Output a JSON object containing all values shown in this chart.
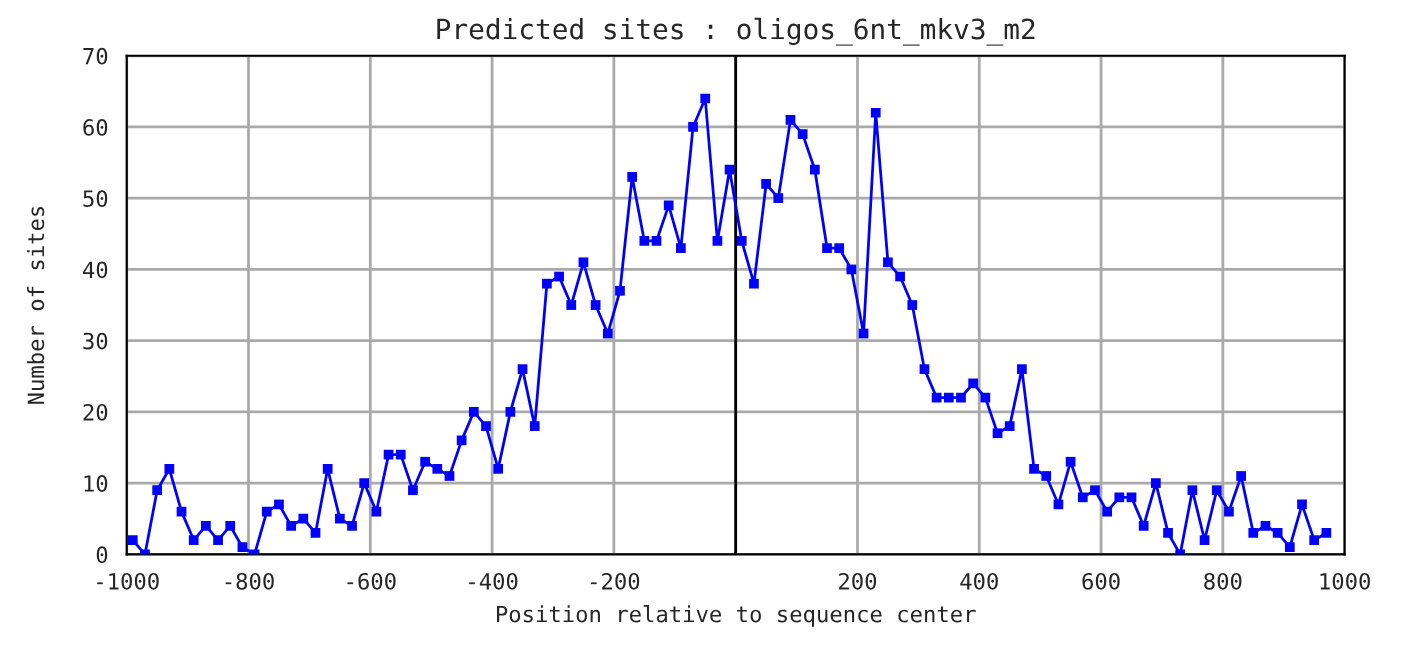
{
  "chart_data": {
    "type": "line",
    "title": "Predicted sites : oligos_6nt_mkv3_m2",
    "xlabel": "Position relative to sequence center",
    "ylabel": "Number of sites",
    "x": [
      -990,
      -970,
      -950,
      -930,
      -910,
      -890,
      -870,
      -850,
      -830,
      -810,
      -790,
      -770,
      -750,
      -730,
      -710,
      -690,
      -670,
      -650,
      -630,
      -610,
      -590,
      -570,
      -550,
      -530,
      -510,
      -490,
      -470,
      -450,
      -430,
      -410,
      -390,
      -370,
      -350,
      -330,
      -310,
      -290,
      -270,
      -250,
      -230,
      -210,
      -190,
      -170,
      -150,
      -130,
      -110,
      -90,
      -70,
      -50,
      -30,
      -10,
      10,
      30,
      50,
      70,
      90,
      110,
      130,
      150,
      170,
      190,
      210,
      230,
      250,
      270,
      290,
      310,
      330,
      350,
      370,
      390,
      410,
      430,
      450,
      470,
      490,
      510,
      530,
      550,
      570,
      590,
      610,
      630,
      650,
      670,
      690,
      710,
      730,
      750,
      770,
      790,
      810,
      830,
      850,
      870,
      890,
      910,
      930,
      950,
      970
    ],
    "series": [
      {
        "color": "#0000ff",
        "values": [
          2,
          0,
          9,
          12,
          6,
          2,
          4,
          2,
          4,
          1,
          0,
          6,
          7,
          4,
          5,
          3,
          12,
          5,
          4,
          10,
          6,
          14,
          14,
          9,
          13,
          12,
          11,
          16,
          20,
          18,
          12,
          20,
          26,
          18,
          38,
          39,
          35,
          41,
          35,
          31,
          37,
          53,
          44,
          44,
          49,
          43,
          60,
          64,
          44,
          54,
          44,
          38,
          52,
          50,
          61,
          59,
          54,
          43,
          43,
          40,
          31,
          62,
          41,
          39,
          35,
          26,
          22,
          22,
          22,
          24,
          22,
          17,
          18,
          26,
          12,
          11,
          7,
          13,
          8,
          9,
          6,
          8,
          8,
          4,
          10,
          3,
          0,
          9,
          2,
          9,
          6,
          11,
          3,
          4,
          3,
          1,
          7,
          2,
          3
        ]
      }
    ],
    "xlim": [
      -1000,
      1000
    ],
    "xticks": [
      -1000,
      -800,
      -600,
      -400,
      -200,
      {
        "value": 0,
        "label": null
      },
      200,
      400,
      600,
      800,
      1000
    ],
    "ylim": [
      0,
      70
    ],
    "yticks": [
      0,
      10,
      20,
      30,
      40,
      50,
      60,
      70
    ],
    "ref_lines": [
      {
        "axis": "x",
        "value": 0,
        "color": "#000000"
      }
    ],
    "grid": true,
    "marker": "square",
    "line_style": "solid",
    "legend": false
  }
}
